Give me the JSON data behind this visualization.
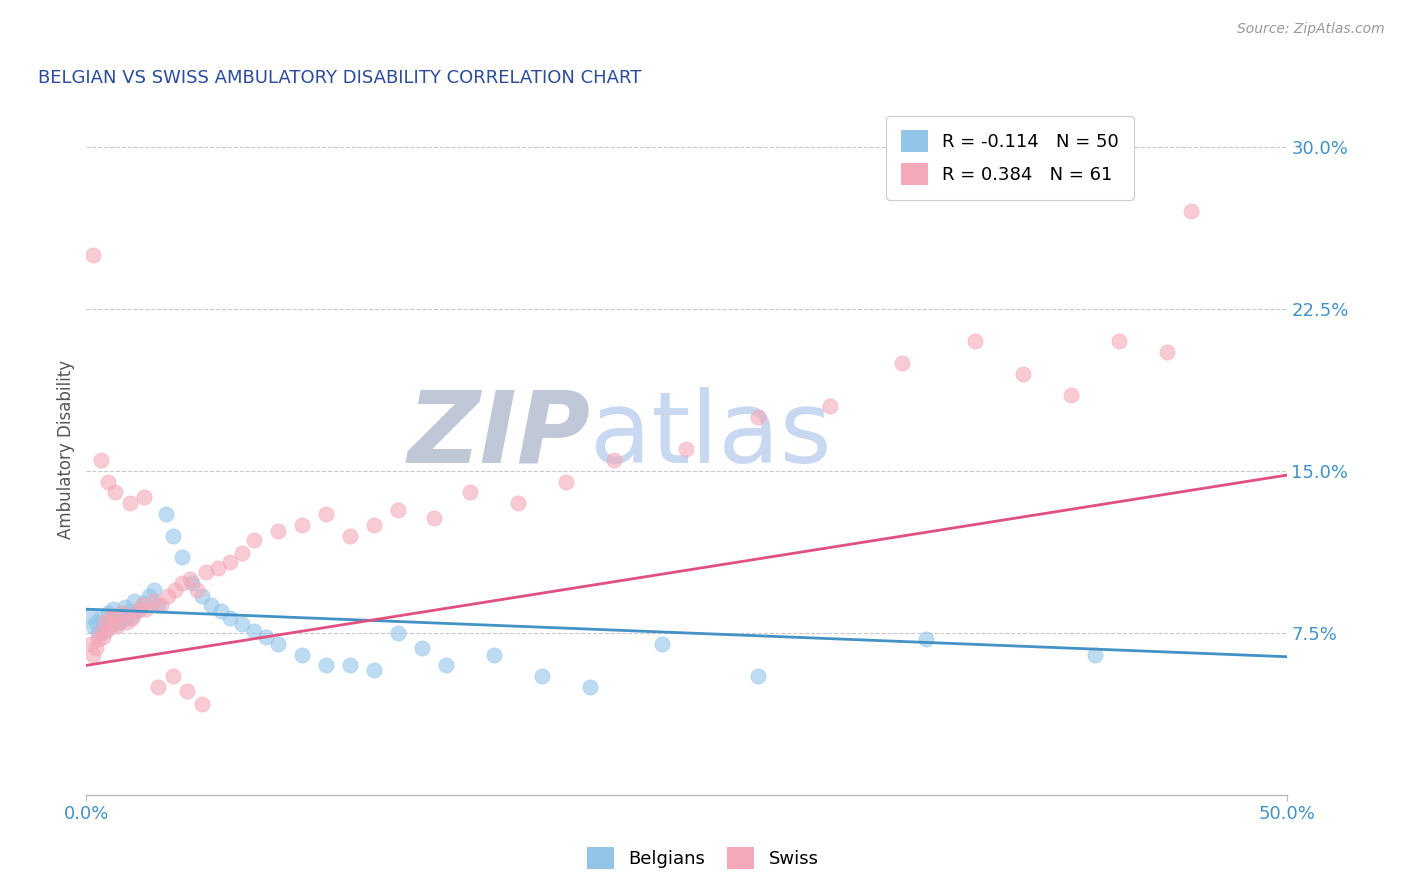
{
  "title": "BELGIAN VS SWISS AMBULATORY DISABILITY CORRELATION CHART",
  "source": "Source: ZipAtlas.com",
  "ylabel": "Ambulatory Disability",
  "xlim": [
    0.0,
    0.5
  ],
  "ylim": [
    0.0,
    0.32
  ],
  "yticks": [
    0.075,
    0.15,
    0.225,
    0.3
  ],
  "ytick_labels": [
    "7.5%",
    "15.0%",
    "22.5%",
    "30.0%"
  ],
  "xticks": [
    0.0,
    0.5
  ],
  "xtick_labels": [
    "0.0%",
    "50.0%"
  ],
  "legend_belgian": "Belgians",
  "legend_swiss": "Swiss",
  "R_belgian": -0.114,
  "N_belgian": 50,
  "R_swiss": 0.384,
  "N_swiss": 61,
  "belgian_color": "#92c5e8",
  "swiss_color": "#f4a8b8",
  "belgian_line_color": "#4292c6",
  "swiss_line_color": "#e05080",
  "background_color": "#ffffff",
  "grid_color": "#c8c8c8",
  "title_color": "#2b4c9b",
  "axis_label_color": "#555555",
  "tick_label_color": "#4292c6",
  "watermark_zip_color": "#c8cfe0",
  "watermark_atlas_color": "#c8d8f0",
  "belgian_line_start_y": 0.086,
  "belgian_line_end_y": 0.064,
  "swiss_line_start_y": 0.06,
  "swiss_line_end_y": 0.148,
  "belgian_x": [
    0.002,
    0.003,
    0.004,
    0.005,
    0.006,
    0.007,
    0.008,
    0.009,
    0.01,
    0.011,
    0.012,
    0.013,
    0.014,
    0.015,
    0.016,
    0.017,
    0.018,
    0.019,
    0.02,
    0.022,
    0.024,
    0.026,
    0.028,
    0.03,
    0.033,
    0.036,
    0.04,
    0.044,
    0.048,
    0.052,
    0.056,
    0.06,
    0.065,
    0.07,
    0.075,
    0.08,
    0.09,
    0.1,
    0.11,
    0.12,
    0.13,
    0.14,
    0.15,
    0.17,
    0.19,
    0.21,
    0.24,
    0.28,
    0.35,
    0.42
  ],
  "belgian_y": [
    0.083,
    0.078,
    0.08,
    0.075,
    0.082,
    0.079,
    0.076,
    0.084,
    0.081,
    0.086,
    0.079,
    0.082,
    0.08,
    0.084,
    0.087,
    0.082,
    0.085,
    0.083,
    0.09,
    0.086,
    0.089,
    0.092,
    0.095,
    0.088,
    0.13,
    0.12,
    0.11,
    0.098,
    0.092,
    0.088,
    0.085,
    0.082,
    0.079,
    0.076,
    0.073,
    0.07,
    0.065,
    0.06,
    0.06,
    0.058,
    0.075,
    0.068,
    0.06,
    0.065,
    0.055,
    0.05,
    0.07,
    0.055,
    0.072,
    0.065
  ],
  "swiss_x": [
    0.002,
    0.003,
    0.004,
    0.005,
    0.006,
    0.007,
    0.008,
    0.009,
    0.01,
    0.011,
    0.012,
    0.013,
    0.015,
    0.017,
    0.019,
    0.021,
    0.023,
    0.025,
    0.028,
    0.031,
    0.034,
    0.037,
    0.04,
    0.043,
    0.046,
    0.05,
    0.055,
    0.06,
    0.065,
    0.07,
    0.08,
    0.09,
    0.1,
    0.11,
    0.12,
    0.13,
    0.145,
    0.16,
    0.18,
    0.2,
    0.22,
    0.25,
    0.28,
    0.31,
    0.34,
    0.37,
    0.39,
    0.41,
    0.43,
    0.45,
    0.46,
    0.003,
    0.006,
    0.009,
    0.012,
    0.018,
    0.024,
    0.03,
    0.036,
    0.042,
    0.048
  ],
  "swiss_y": [
    0.07,
    0.065,
    0.068,
    0.072,
    0.075,
    0.073,
    0.08,
    0.077,
    0.082,
    0.079,
    0.083,
    0.078,
    0.084,
    0.08,
    0.082,
    0.085,
    0.088,
    0.086,
    0.09,
    0.088,
    0.092,
    0.095,
    0.098,
    0.1,
    0.095,
    0.103,
    0.105,
    0.108,
    0.112,
    0.118,
    0.122,
    0.125,
    0.13,
    0.12,
    0.125,
    0.132,
    0.128,
    0.14,
    0.135,
    0.145,
    0.155,
    0.16,
    0.175,
    0.18,
    0.2,
    0.21,
    0.195,
    0.185,
    0.21,
    0.205,
    0.27,
    0.25,
    0.155,
    0.145,
    0.14,
    0.135,
    0.138,
    0.05,
    0.055,
    0.048,
    0.042
  ]
}
